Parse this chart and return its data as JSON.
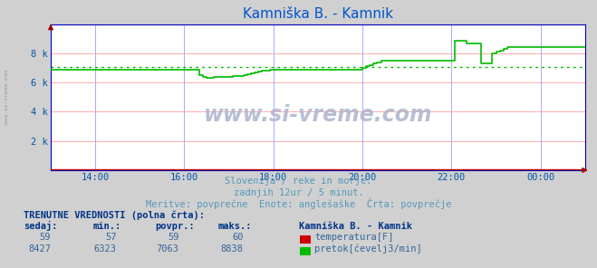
{
  "title": "Kamniška B. - Kamnik",
  "bg_color": "#d0d0d0",
  "plot_bg_color": "#ffffff",
  "grid_color": "#ffaaaa",
  "grid_color_v": "#aaaaff",
  "title_color": "#0055cc",
  "axis_color": "#0000bb",
  "tick_color": "#0055aa",
  "text_color": "#5599bb",
  "subtitle_color": "#5599bb",
  "footer_bold_color": "#003388",
  "footer_val_color": "#336699",
  "xtick_labels": [
    "14:00",
    "16:00",
    "18:00",
    "20:00",
    "22:00",
    "00:00"
  ],
  "ytick_labels": [
    "",
    "2 k",
    "4 k",
    "6 k",
    "8 k",
    ""
  ],
  "subtitle1": "Slovenija / reke in morje.",
  "subtitle2": "zadnjih 12ur / 5 minut.",
  "subtitle3": "Meritve: povprečne  Enote: anglešaške  Črta: povprečje",
  "footer_title": "TRENUTNE VREDNOSTI (polna črta):",
  "col_headers": [
    "sedaj:",
    "min.:",
    "povpr.:",
    "maks.:"
  ],
  "col_header_station": "Kamniška B. - Kamnik",
  "row1_vals": [
    "59",
    "57",
    "59",
    "60"
  ],
  "row2_vals": [
    "8427",
    "6323",
    "7063",
    "8838"
  ],
  "row1_label": "temperatura[F]",
  "row1_color": "#cc0000",
  "row2_label": "pretok[čevelj3/min]",
  "row2_color": "#00bb00",
  "avg_flow": 7063,
  "watermark": "www.si-vreme.com",
  "flow_data": [
    6850,
    6850,
    6850,
    6850,
    6850,
    6850,
    6850,
    6850,
    6850,
    6850,
    6850,
    6850,
    6850,
    6850,
    6850,
    6850,
    6850,
    6850,
    6850,
    6850,
    6850,
    6850,
    6850,
    6850,
    6850,
    6850,
    6850,
    6850,
    6850,
    6850,
    6850,
    6850,
    6850,
    6850,
    6850,
    6850,
    6850,
    6850,
    6850,
    6850,
    6500,
    6400,
    6350,
    6350,
    6400,
    6400,
    6400,
    6400,
    6400,
    6450,
    6450,
    6450,
    6500,
    6550,
    6600,
    6700,
    6750,
    6800,
    6820,
    6850,
    6850,
    6850,
    6850,
    6850,
    6850,
    6850,
    6850,
    6850,
    6850,
    6850,
    6850,
    6850,
    6850,
    6850,
    6850,
    6850,
    6850,
    6850,
    6850,
    6850,
    6850,
    6850,
    6850,
    6850,
    7000,
    7100,
    7200,
    7300,
    7400,
    7500,
    7500,
    7500,
    7500,
    7500,
    7500,
    7500,
    7500,
    7500,
    7500,
    7500,
    7500,
    7500,
    7500,
    7500,
    7500,
    7500,
    7500,
    7500,
    7500,
    8838,
    8838,
    8838,
    8700,
    8700,
    8700,
    8700,
    7300,
    7300,
    7300,
    8000,
    8100,
    8200,
    8300,
    8400,
    8427,
    8427,
    8427,
    8427,
    8427,
    8427,
    8427,
    8427,
    8427,
    8427,
    8427,
    8427,
    8427,
    8427,
    8427,
    8427,
    8427,
    8427,
    8427,
    8427,
    8427
  ],
  "temp_val": 59
}
